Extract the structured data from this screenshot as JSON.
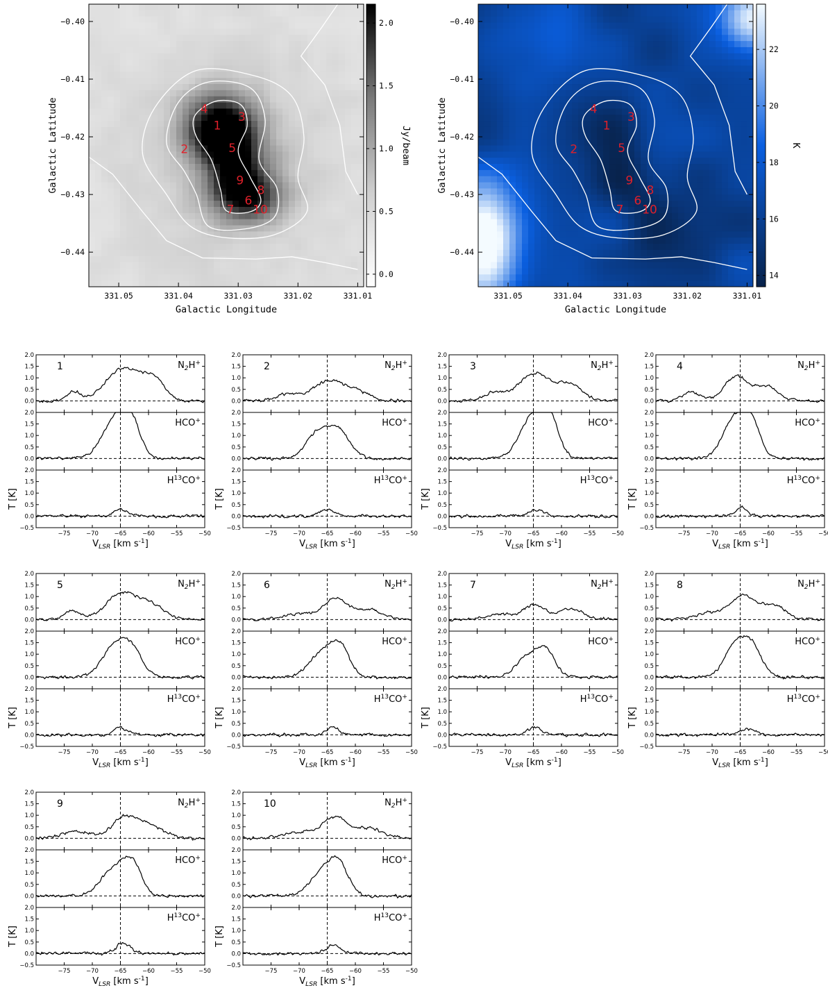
{
  "maps": [
    {
      "id": "continuum",
      "xlabel": "Galactic Longitude",
      "ylabel": "Galactic Latitude",
      "cbar_label": "Jy/beam",
      "cbar_range": [
        -0.1,
        2.15
      ],
      "cbar_ticks": [
        {
          "v": 0.0,
          "t": "0.0"
        },
        {
          "v": 0.5,
          "t": "0.5"
        },
        {
          "v": 1.0,
          "t": "1.0"
        },
        {
          "v": 1.5,
          "t": "1.5"
        },
        {
          "v": 2.0,
          "t": "2.0"
        }
      ],
      "colormap": "gray_r",
      "colors": [
        "#ffffff",
        "#000000"
      ]
    },
    {
      "id": "temperature",
      "xlabel": "Galactic Longitude",
      "ylabel": "Galactic Latitude",
      "cbar_label": "K",
      "cbar_range": [
        13.6,
        23.6
      ],
      "cbar_ticks": [
        {
          "v": 14,
          "t": "14"
        },
        {
          "v": 16,
          "t": "16"
        },
        {
          "v": 18,
          "t": "18"
        },
        {
          "v": 20,
          "t": "20"
        },
        {
          "v": 22,
          "t": "22"
        }
      ],
      "colormap": "blues_r",
      "colors": [
        "#08224a",
        "#0a5fe0",
        "#f4fbff"
      ]
    }
  ],
  "map_axes": {
    "xlim": [
      331.055,
      331.009
    ],
    "ylim": [
      -0.446,
      -0.397
    ],
    "xticks": [
      {
        "v": 331.05,
        "t": "331.05"
      },
      {
        "v": 331.04,
        "t": "331.04"
      },
      {
        "v": 331.03,
        "t": "331.03"
      },
      {
        "v": 331.02,
        "t": "331.02"
      },
      {
        "v": 331.01,
        "t": "331.01"
      }
    ],
    "yticks": [
      {
        "v": -0.4,
        "t": "−0.40"
      },
      {
        "v": -0.41,
        "t": "−0.41"
      },
      {
        "v": -0.42,
        "t": "−0.42"
      },
      {
        "v": -0.43,
        "t": "−0.43"
      },
      {
        "v": -0.44,
        "t": "−0.44"
      }
    ]
  },
  "positions": [
    {
      "label": "1",
      "l": 331.0335,
      "b": -0.418
    },
    {
      "label": "2",
      "l": 331.039,
      "b": -0.4221
    },
    {
      "label": "3",
      "l": 331.0294,
      "b": -0.4165
    },
    {
      "label": "4",
      "l": 331.0357,
      "b": -0.4151
    },
    {
      "label": "5",
      "l": 331.031,
      "b": -0.4219
    },
    {
      "label": "6",
      "l": 331.0283,
      "b": -0.431
    },
    {
      "label": "7",
      "l": 331.0313,
      "b": -0.4326
    },
    {
      "label": "8",
      "l": 331.0262,
      "b": -0.4292
    },
    {
      "label": "9",
      "l": 331.0297,
      "b": -0.4275
    },
    {
      "label": "10",
      "l": 331.0263,
      "b": -0.4326
    }
  ],
  "label_color": "#e0202a",
  "spectra_axes": {
    "xlabel": "V$_{LSR}$ [km s$^{-1}$]",
    "ylabel": "T [K]",
    "xlim": [
      -80,
      -50
    ],
    "ylim": [
      -0.5,
      2.0
    ],
    "xticks": [
      {
        "v": -75,
        "t": "−75"
      },
      {
        "v": -70,
        "t": "−70"
      },
      {
        "v": -65,
        "t": "−65"
      },
      {
        "v": -60,
        "t": "−60"
      },
      {
        "v": -55,
        "t": "−55"
      },
      {
        "v": -50,
        "t": "−50"
      }
    ],
    "yticks": [
      {
        "v": -0.5,
        "t": "−0.5"
      },
      {
        "v": 0.0,
        "t": "0.0"
      },
      {
        "v": 0.5,
        "t": "0.5"
      },
      {
        "v": 1.0,
        "t": "1.0"
      },
      {
        "v": 1.5,
        "t": "1.5"
      },
      {
        "v": 2.0,
        "t": "2.0"
      }
    ],
    "vline": -65,
    "molecules": [
      "N$_2$H$^+$",
      "HCO$^+$",
      "H$^{13}$CO$^+$"
    ]
  },
  "chart_data": [
    {
      "type": "heatmap",
      "panel": "continuum map",
      "xlabel": "Galactic Longitude",
      "ylabel": "Galactic Latitude",
      "xlim": [
        331.055,
        331.009
      ],
      "ylim": [
        -0.446,
        -0.397
      ],
      "colorbar_label": "Jy/beam",
      "colorbar_range": [
        -0.1,
        2.15
      ],
      "grid": false
    },
    {
      "type": "heatmap",
      "panel": "dust temperature map",
      "xlabel": "Galactic Longitude",
      "ylabel": "Galactic Latitude",
      "xlim": [
        331.055,
        331.009
      ],
      "ylim": [
        -0.446,
        -0.397
      ],
      "colorbar_label": "K",
      "colorbar_range": [
        13.6,
        23.6
      ],
      "grid": false
    },
    {
      "type": "line",
      "panel": "spectra",
      "xlabel": "V$_{LSR}$ [km s$^{-1}$]",
      "ylabel": "T [K]",
      "xlim": [
        -80,
        -50
      ],
      "ylim": [
        -0.5,
        2.0
      ],
      "reference_velocity": -65,
      "positions": [
        {
          "position": "1",
          "series": [
            {
              "name": "N$_2$H$^+$",
              "peaks": [
                {
                  "v": -65.4,
                  "T": 1.2,
                  "w": 2.6
                },
                {
                  "v": -61.0,
                  "T": 0.75,
                  "w": 2.4
                },
                {
                  "v": -58.6,
                  "T": 0.55,
                  "w": 1.8
                },
                {
                  "v": -73.4,
                  "T": 0.4,
                  "w": 1.3
                }
              ]
            },
            {
              "name": "HCO$^+$",
              "peaks": [
                {
                  "v": -65.6,
                  "T": 1.85,
                  "w": 2.4
                },
                {
                  "v": -63.0,
                  "T": 1.0,
                  "w": 1.6
                }
              ]
            },
            {
              "name": "H$^{13}$CO$^+$",
              "peaks": [
                {
                  "v": -65.0,
                  "T": 0.3,
                  "w": 1.3
                }
              ]
            }
          ]
        },
        {
          "position": "2",
          "series": [
            {
              "name": "N$_2$H$^+$",
              "peaks": [
                {
                  "v": -65.0,
                  "T": 0.85,
                  "w": 2.6
                },
                {
                  "v": -60.0,
                  "T": 0.42,
                  "w": 2.3
                },
                {
                  "v": -72.0,
                  "T": 0.3,
                  "w": 2.0
                }
              ]
            },
            {
              "name": "HCO$^+$",
              "peaks": [
                {
                  "v": -66.2,
                  "T": 1.25,
                  "w": 2.2
                },
                {
                  "v": -62.4,
                  "T": 0.95,
                  "w": 1.8
                }
              ]
            },
            {
              "name": "H$^{13}$CO$^+$",
              "peaks": [
                {
                  "v": -64.8,
                  "T": 0.28,
                  "w": 1.3
                }
              ]
            }
          ]
        },
        {
          "position": "3",
          "series": [
            {
              "name": "N$_2$H$^+$",
              "peaks": [
                {
                  "v": -64.8,
                  "T": 1.2,
                  "w": 2.8
                },
                {
                  "v": -58.5,
                  "T": 0.68,
                  "w": 2.2
                },
                {
                  "v": -72.0,
                  "T": 0.35,
                  "w": 1.8
                }
              ]
            },
            {
              "name": "HCO$^+$",
              "peaks": [
                {
                  "v": -64.8,
                  "T": 1.95,
                  "w": 2.4
                },
                {
                  "v": -61.8,
                  "T": 1.1,
                  "w": 1.5
                }
              ]
            },
            {
              "name": "H$^{13}$CO$^+$",
              "peaks": [
                {
                  "v": -64.6,
                  "T": 0.3,
                  "w": 1.4
                }
              ]
            }
          ]
        },
        {
          "position": "4",
          "series": [
            {
              "name": "N$_2$H$^+$",
              "peaks": [
                {
                  "v": -65.8,
                  "T": 1.05,
                  "w": 2.0
                },
                {
                  "v": -60.4,
                  "T": 0.62,
                  "w": 2.2
                },
                {
                  "v": -73.5,
                  "T": 0.4,
                  "w": 1.5
                }
              ]
            },
            {
              "name": "HCO$^+$",
              "peaks": [
                {
                  "v": -65.7,
                  "T": 1.85,
                  "w": 2.2
                },
                {
                  "v": -62.8,
                  "T": 1.05,
                  "w": 1.5
                }
              ]
            },
            {
              "name": "H$^{13}$CO$^+$",
              "peaks": [
                {
                  "v": -64.8,
                  "T": 0.38,
                  "w": 1.0
                }
              ]
            }
          ]
        },
        {
          "position": "5",
          "series": [
            {
              "name": "N$_2$H$^+$",
              "peaks": [
                {
                  "v": -65.0,
                  "T": 1.1,
                  "w": 2.6
                },
                {
                  "v": -59.8,
                  "T": 0.68,
                  "w": 2.4
                },
                {
                  "v": -73.5,
                  "T": 0.38,
                  "w": 1.5
                }
              ]
            },
            {
              "name": "HCO$^+$",
              "peaks": [
                {
                  "v": -66.0,
                  "T": 1.32,
                  "w": 2.2
                },
                {
                  "v": -62.8,
                  "T": 1.0,
                  "w": 1.8
                }
              ]
            },
            {
              "name": "H$^{13}$CO$^+$",
              "peaks": [
                {
                  "v": -65.0,
                  "T": 0.32,
                  "w": 1.1
                }
              ]
            }
          ]
        },
        {
          "position": "6",
          "series": [
            {
              "name": "N$_2$H$^+$",
              "peaks": [
                {
                  "v": -63.7,
                  "T": 0.85,
                  "w": 2.0
                },
                {
                  "v": -58.0,
                  "T": 0.45,
                  "w": 2.8
                },
                {
                  "v": -70.0,
                  "T": 0.25,
                  "w": 3.0
                }
              ]
            },
            {
              "name": "HCO$^+$",
              "peaks": [
                {
                  "v": -65.5,
                  "T": 1.15,
                  "w": 2.4
                },
                {
                  "v": -62.5,
                  "T": 0.95,
                  "w": 1.6
                }
              ]
            },
            {
              "name": "H$^{13}$CO$^+$",
              "peaks": [
                {
                  "v": -64.0,
                  "T": 0.35,
                  "w": 1.1
                }
              ]
            }
          ]
        },
        {
          "position": "7",
          "series": [
            {
              "name": "N$_2$H$^+$",
              "peaks": [
                {
                  "v": -64.8,
                  "T": 0.65,
                  "w": 1.9
                },
                {
                  "v": -58.3,
                  "T": 0.45,
                  "w": 2.3
                },
                {
                  "v": -71.0,
                  "T": 0.25,
                  "w": 2.4
                }
              ]
            },
            {
              "name": "HCO$^+$",
              "peaks": [
                {
                  "v": -66.0,
                  "T": 0.9,
                  "w": 2.0
                },
                {
                  "v": -62.7,
                  "T": 1.05,
                  "w": 1.6
                }
              ]
            },
            {
              "name": "H$^{13}$CO$^+$",
              "peaks": [
                {
                  "v": -64.8,
                  "T": 0.35,
                  "w": 1.2
                }
              ]
            }
          ]
        },
        {
          "position": "8",
          "series": [
            {
              "name": "N$_2$H$^+$",
              "peaks": [
                {
                  "v": -64.6,
                  "T": 1.0,
                  "w": 2.2
                },
                {
                  "v": -59.2,
                  "T": 0.62,
                  "w": 2.2
                },
                {
                  "v": -70.5,
                  "T": 0.3,
                  "w": 2.5
                }
              ]
            },
            {
              "name": "HCO$^+$",
              "peaks": [
                {
                  "v": -65.6,
                  "T": 1.55,
                  "w": 2.0
                },
                {
                  "v": -62.5,
                  "T": 1.0,
                  "w": 1.6
                }
              ]
            },
            {
              "name": "H$^{13}$CO$^+$",
              "peaks": [
                {
                  "v": -63.8,
                  "T": 0.28,
                  "w": 1.4
                }
              ]
            }
          ]
        },
        {
          "position": "9",
          "series": [
            {
              "name": "N$_2$H$^+$",
              "peaks": [
                {
                  "v": -64.4,
                  "T": 0.85,
                  "w": 2.2
                },
                {
                  "v": -60.0,
                  "T": 0.55,
                  "w": 2.5
                },
                {
                  "v": -73.0,
                  "T": 0.3,
                  "w": 2.5
                }
              ]
            },
            {
              "name": "HCO$^+$",
              "peaks": [
                {
                  "v": -66.0,
                  "T": 1.2,
                  "w": 2.4
                },
                {
                  "v": -62.8,
                  "T": 1.15,
                  "w": 1.6
                }
              ]
            },
            {
              "name": "H$^{13}$CO$^+$",
              "peaks": [
                {
                  "v": -64.5,
                  "T": 0.45,
                  "w": 1.3
                }
              ]
            }
          ]
        },
        {
          "position": "10",
          "series": [
            {
              "name": "N$_2$H$^+$",
              "peaks": [
                {
                  "v": -63.7,
                  "T": 0.88,
                  "w": 2.0
                },
                {
                  "v": -57.8,
                  "T": 0.45,
                  "w": 2.6
                },
                {
                  "v": -70.0,
                  "T": 0.28,
                  "w": 3.0
                }
              ]
            },
            {
              "name": "HCO$^+$",
              "peaks": [
                {
                  "v": -65.5,
                  "T": 1.15,
                  "w": 2.3
                },
                {
                  "v": -62.7,
                  "T": 1.0,
                  "w": 1.6
                }
              ]
            },
            {
              "name": "H$^{13}$CO$^+$",
              "peaks": [
                {
                  "v": -63.8,
                  "T": 0.38,
                  "w": 1.3
                }
              ]
            }
          ]
        }
      ]
    }
  ]
}
